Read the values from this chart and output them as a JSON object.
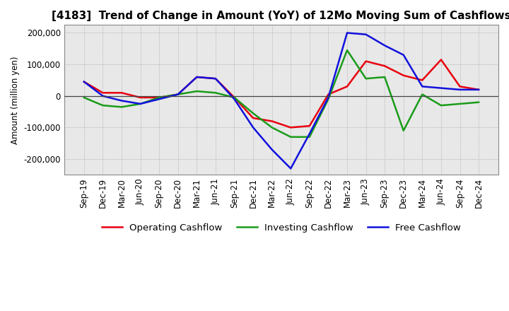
{
  "title": "[4183]  Trend of Change in Amount (YoY) of 12Mo Moving Sum of Cashflows",
  "ylabel": "Amount (million yen)",
  "x_labels": [
    "Sep-19",
    "Dec-19",
    "Mar-20",
    "Jun-20",
    "Sep-20",
    "Dec-20",
    "Mar-21",
    "Jun-21",
    "Sep-21",
    "Dec-21",
    "Mar-22",
    "Jun-22",
    "Sep-22",
    "Dec-22",
    "Mar-23",
    "Jun-23",
    "Sep-23",
    "Dec-23",
    "Mar-24",
    "Jun-24",
    "Sep-24",
    "Dec-24"
  ],
  "operating_cashflow": [
    45000,
    10000,
    10000,
    -5000,
    -5000,
    5000,
    60000,
    55000,
    -5000,
    -70000,
    -80000,
    -100000,
    -95000,
    5000,
    30000,
    110000,
    95000,
    65000,
    50000,
    115000,
    30000,
    20000
  ],
  "investing_cashflow": [
    -5000,
    -30000,
    -35000,
    -25000,
    -5000,
    5000,
    15000,
    10000,
    -5000,
    -55000,
    -100000,
    -130000,
    -130000,
    -10000,
    145000,
    55000,
    60000,
    -110000,
    5000,
    -30000,
    -25000,
    -20000
  ],
  "free_cashflow": [
    45000,
    0,
    -15000,
    -25000,
    -10000,
    5000,
    60000,
    55000,
    -10000,
    -100000,
    -170000,
    -230000,
    -120000,
    -5000,
    200000,
    195000,
    160000,
    130000,
    30000,
    25000,
    20000,
    20000
  ],
  "ylim": [
    -250000,
    225000
  ],
  "yticks": [
    -200000,
    -100000,
    0,
    100000,
    200000
  ],
  "operating_color": "#e8000e",
  "investing_color": "#1a9c1a",
  "free_color": "#1111dd",
  "bg_color": "#e8e8e8",
  "grid_color": "#999999",
  "title_fontsize": 11,
  "axis_fontsize": 8.5,
  "legend_fontsize": 9.5,
  "linewidth": 1.8
}
